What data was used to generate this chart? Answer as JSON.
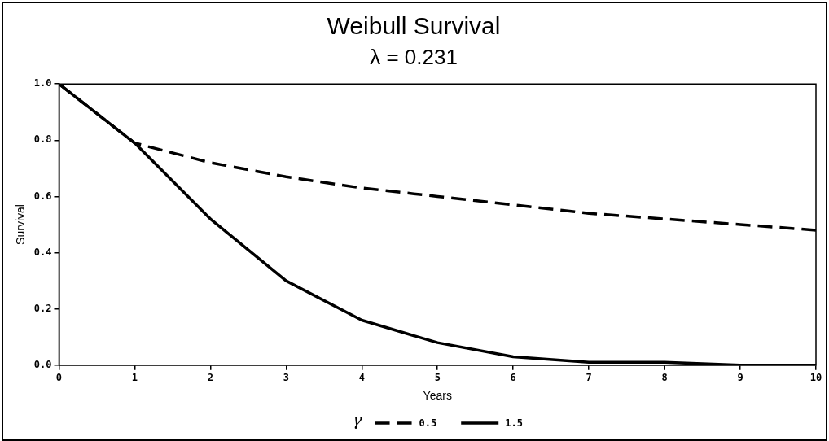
{
  "chart_data": {
    "type": "line",
    "title": "Weibull Survival",
    "subtitle": "λ = 0.231",
    "xlabel": "Years",
    "ylabel": "Survival",
    "legend_title": "γ",
    "legend": "bottom",
    "grid": false,
    "marker": "none",
    "x": [
      0,
      1,
      2,
      3,
      4,
      5,
      6,
      7,
      8,
      9,
      10
    ],
    "xlim": [
      0,
      10
    ],
    "xticks": [
      0,
      1,
      2,
      3,
      4,
      5,
      6,
      7,
      8,
      9,
      10
    ],
    "ylim": [
      0,
      1
    ],
    "yticks": [
      {
        "value": 0,
        "label": "0.0"
      },
      {
        "value": 0.2,
        "label": "0.2"
      },
      {
        "value": 0.4,
        "label": "0.4"
      },
      {
        "value": 0.6,
        "label": "0.6"
      },
      {
        "value": 0.8,
        "label": "0.8"
      },
      {
        "value": 1,
        "label": "1.0"
      }
    ],
    "series": [
      {
        "name": "0.5",
        "color": "#000000",
        "line_style": "dashed",
        "values": [
          1,
          0.79,
          0.72,
          0.67,
          0.63,
          0.6,
          0.57,
          0.54,
          0.52,
          0.5,
          0.48
        ]
      },
      {
        "name": "1.5",
        "color": "#000000",
        "line_style": "solid",
        "values": [
          1,
          0.79,
          0.52,
          0.3,
          0.16,
          0.08,
          0.03,
          0.01,
          0.01,
          0,
          0
        ]
      }
    ]
  }
}
